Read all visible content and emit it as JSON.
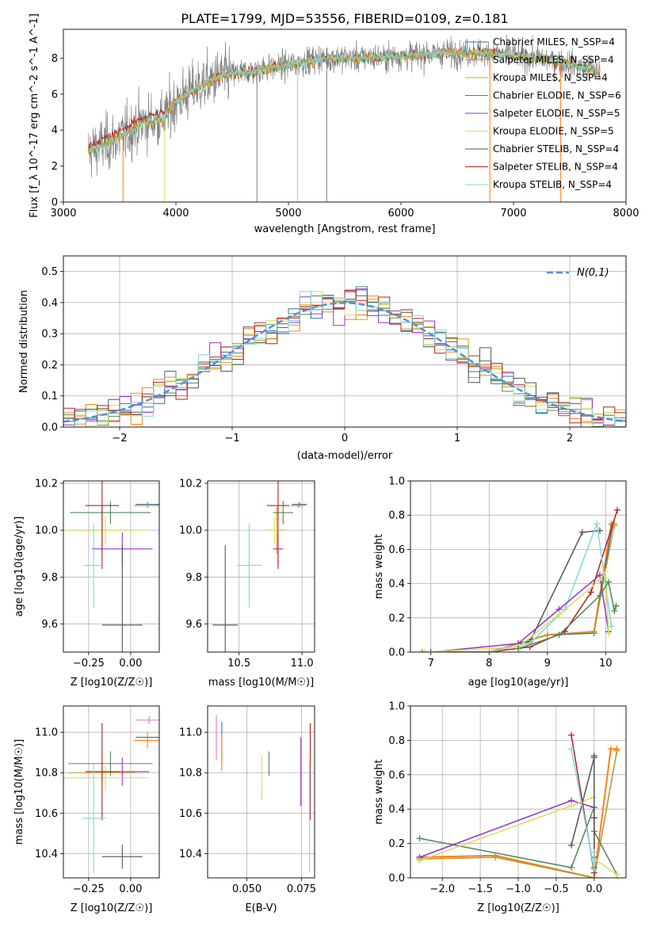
{
  "title": "PLATE=1799, MJD=53556, FIBERID=0109, z=0.181",
  "colors": {
    "chabrier_miles": "#1f77b4",
    "salpeter_miles": "#ff7f0e",
    "kroupa_miles": "#d4a017",
    "chabrier_elodie": "#4b8a5a",
    "salpeter_elodie": "#9b30c8",
    "kroupa_elodie": "#d4e157",
    "chabrier_stelib": "#555555",
    "salpeter_stelib": "#b22222",
    "kroupa_stelib": "#7fd8e0",
    "normal": "#5b8ed6",
    "grid": "#b0b0b0"
  },
  "chart_data": [
    {
      "id": "spectrum",
      "type": "line",
      "xlabel": "wavelength [Angstrom, rest frame]",
      "ylabel": "Flux [f_λ 10^-17 erg cm^-2 s^-1 A^-1]",
      "xlim": [
        3000,
        8000
      ],
      "ylim": [
        0,
        9.6
      ],
      "xticks": [
        3000,
        4000,
        5000,
        6000,
        7000,
        8000
      ],
      "yticks": [
        0,
        2,
        4,
        6,
        8
      ],
      "legend_position": "right",
      "legend": [
        {
          "key": "chabrier_miles",
          "label": "Chabrier MILES, N_SSP=4"
        },
        {
          "key": "salpeter_miles",
          "label": "Salpeter MILES, N_SSP=4"
        },
        {
          "key": "kroupa_miles",
          "label": "Kroupa MILES, N_SSP=4"
        },
        {
          "key": "chabrier_elodie",
          "label": "Chabrier ELODIE, N_SSP=6"
        },
        {
          "key": "salpeter_elodie",
          "label": "Salpeter ELODIE, N_SSP=5"
        },
        {
          "key": "kroupa_elodie",
          "label": "Kroupa ELODIE, N_SSP=5"
        },
        {
          "key": "chabrier_stelib",
          "label": "Chabrier STELIB, N_SSP=4"
        },
        {
          "key": "salpeter_stelib",
          "label": "Salpeter STELIB, N_SSP=4"
        },
        {
          "key": "kroupa_stelib",
          "label": "Kroupa STELIB, N_SSP=4"
        }
      ],
      "continuum": [
        [
          3220,
          2.8
        ],
        [
          3500,
          3.6
        ],
        [
          3700,
          4.4
        ],
        [
          3900,
          4.7
        ],
        [
          4000,
          5.6
        ],
        [
          4200,
          6.4
        ],
        [
          4400,
          7.0
        ],
        [
          4700,
          7.3
        ],
        [
          5000,
          7.6
        ],
        [
          5300,
          8.0
        ],
        [
          5600,
          8.0
        ],
        [
          6000,
          8.1
        ],
        [
          6400,
          8.3
        ],
        [
          6800,
          8.3
        ],
        [
          7200,
          8.0
        ],
        [
          7500,
          7.7
        ],
        [
          7770,
          7.2
        ]
      ]
    },
    {
      "id": "residuals",
      "type": "histogram",
      "xlabel": "(data-model)/error",
      "ylabel": "Normed distribution",
      "xlim": [
        -2.5,
        2.5
      ],
      "ylim": [
        0,
        0.55
      ],
      "xticks": [
        -2,
        -1,
        0,
        1,
        2
      ],
      "yticks": [
        0.0,
        0.1,
        0.2,
        0.3,
        0.4,
        0.5
      ],
      "legend_position": "top-right",
      "normal_label": "N(0,1)"
    },
    {
      "id": "age_vs_Z",
      "type": "errorbar",
      "xlabel": "Z [log10(Z/Z☉)]",
      "ylabel": "age  [log10(age/yr)]",
      "xlim": [
        -0.4,
        0.17
      ],
      "ylim": [
        9.48,
        10.21
      ],
      "xticks": [
        -0.25,
        0.0
      ],
      "yticks": [
        9.6,
        9.8,
        10.0,
        10.2
      ],
      "points": [
        {
          "key": "chabrier_miles",
          "x": 0.1,
          "y": 10.11,
          "xerr": 0.07,
          "yerr": 0.01
        },
        {
          "key": "salpeter_miles",
          "x": 0.1,
          "y": 10.105,
          "xerr": 0.08,
          "yerr": 0.01
        },
        {
          "key": "kroupa_miles",
          "x": -0.17,
          "y": 10.0,
          "xerr": 0.2,
          "yerr": 0.1
        },
        {
          "key": "chabrier_elodie",
          "x": -0.12,
          "y": 10.075,
          "xerr": 0.24,
          "yerr": 0.05
        },
        {
          "key": "salpeter_elodie",
          "x": -0.05,
          "y": 9.92,
          "xerr": 0.18,
          "yerr": 0.07
        },
        {
          "key": "kroupa_elodie",
          "x": -0.15,
          "y": 10.0,
          "xerr": 0.25,
          "yerr": 0.06
        },
        {
          "key": "chabrier_stelib",
          "x": -0.05,
          "y": 9.595,
          "xerr": 0.12,
          "yerr": 0.34
        },
        {
          "key": "salpeter_stelib",
          "x": -0.17,
          "y": 10.105,
          "xerr": 0.1,
          "yerr": 0.27
        },
        {
          "key": "kroupa_stelib",
          "x": -0.22,
          "y": 9.85,
          "xerr": 0.06,
          "yerr": 0.18
        }
      ]
    },
    {
      "id": "age_vs_mass",
      "type": "errorbar",
      "xlabel": "mass [log10(M/M☉)]",
      "ylabel": "",
      "xlim": [
        10.25,
        11.1
      ],
      "ylim": [
        9.48,
        10.21
      ],
      "xticks": [
        10.5,
        11.0
      ],
      "yticks": [
        9.6,
        9.8,
        10.0,
        10.2
      ],
      "points": [
        {
          "key": "chabrier_miles",
          "x": 10.98,
          "y": 10.11,
          "xerr": 0.06,
          "yerr": 0.01
        },
        {
          "key": "salpeter_miles",
          "x": 10.97,
          "y": 10.105,
          "xerr": 0.06,
          "yerr": 0.01
        },
        {
          "key": "kroupa_miles",
          "x": 10.8,
          "y": 10.0,
          "xerr": 0.06,
          "yerr": 0.1
        },
        {
          "key": "chabrier_elodie",
          "x": 10.85,
          "y": 10.075,
          "xerr": 0.08,
          "yerr": 0.05
        },
        {
          "key": "salpeter_elodie",
          "x": 10.81,
          "y": 9.92,
          "xerr": 0.04,
          "yerr": 0.07
        },
        {
          "key": "kroupa_elodie",
          "x": 10.78,
          "y": 10.0,
          "xerr": 0.05,
          "yerr": 0.06
        },
        {
          "key": "chabrier_stelib",
          "x": 10.39,
          "y": 9.595,
          "xerr": 0.1,
          "yerr": 0.34
        },
        {
          "key": "salpeter_stelib",
          "x": 10.81,
          "y": 10.105,
          "xerr": 0.09,
          "yerr": 0.27
        },
        {
          "key": "kroupa_stelib",
          "x": 10.58,
          "y": 9.85,
          "xerr": 0.1,
          "yerr": 0.18
        }
      ]
    },
    {
      "id": "mass_weight_vs_age",
      "type": "line",
      "xlabel": "age  [log10(age/yr)]",
      "ylabel": "mass weight",
      "xlim": [
        6.65,
        10.35
      ],
      "ylim": [
        0,
        1
      ],
      "xticks": [
        7,
        8,
        9,
        10
      ],
      "yticks": [
        0.0,
        0.2,
        0.4,
        0.6,
        0.8,
        1.0
      ],
      "series": [
        {
          "key": "salpeter_miles",
          "x": [
            6.85,
            8.0,
            9.0,
            9.8,
            10.1,
            10.15
          ],
          "y": [
            0.0,
            0.0,
            0.1,
            0.12,
            0.75,
            0.75
          ],
          "w": 2
        },
        {
          "key": "chabrier_miles",
          "x": [
            6.85,
            8.0,
            9.0,
            9.8,
            10.12
          ],
          "y": [
            0.0,
            0.0,
            0.1,
            0.11,
            0.74
          ],
          "w": 1.5
        },
        {
          "key": "kroupa_miles",
          "x": [
            6.85,
            8.0,
            9.0,
            9.8,
            10.15
          ],
          "y": [
            0.0,
            0.0,
            0.1,
            0.12,
            0.74
          ],
          "w": 1.2
        },
        {
          "key": "salpeter_stelib",
          "x": [
            8.0,
            8.7,
            9.3,
            9.75,
            10.2
          ],
          "y": [
            0.0,
            0.03,
            0.12,
            0.35,
            0.83
          ],
          "w": 1.5
        },
        {
          "key": "chabrier_stelib",
          "x": [
            8.5,
            8.7,
            9.6,
            9.9
          ],
          "y": [
            0.05,
            0.06,
            0.7,
            0.71
          ],
          "w": 1.5
        },
        {
          "key": "kroupa_stelib",
          "x": [
            8.0,
            8.7,
            9.3,
            9.85,
            10.1
          ],
          "y": [
            0.0,
            0.05,
            0.25,
            0.75,
            0.15
          ],
          "w": 1.5
        },
        {
          "key": "salpeter_elodie",
          "x": [
            7.0,
            8.5,
            9.2,
            9.9,
            10.05
          ],
          "y": [
            0.0,
            0.05,
            0.25,
            0.45,
            0.12
          ],
          "w": 1.5
        },
        {
          "key": "kroupa_elodie",
          "x": [
            6.9,
            8.5,
            9.2,
            9.9,
            10.0,
            10.05
          ],
          "y": [
            0.0,
            0.03,
            0.22,
            0.42,
            0.47,
            0.11
          ],
          "w": 1.5
        },
        {
          "key": "chabrier_elodie",
          "x": [
            8.5,
            9.2,
            9.9,
            10.05,
            10.15,
            10.18
          ],
          "y": [
            0.02,
            0.1,
            0.33,
            0.41,
            0.24,
            0.27
          ],
          "w": 1.5
        }
      ]
    },
    {
      "id": "mass_vs_Z",
      "type": "errorbar",
      "xlabel": "Z [log10(Z/Z☉)]",
      "ylabel": "mass [log10(M/M☉)]",
      "xlim": [
        -0.4,
        0.17
      ],
      "ylim": [
        10.28,
        11.13
      ],
      "xticks": [
        -0.25,
        0.0
      ],
      "yticks": [
        10.4,
        10.6,
        10.8,
        11.0
      ],
      "points": [
        {
          "key": "chabrier_miles",
          "x": 0.1,
          "y": 10.975,
          "xerr": 0.07,
          "yerr": 0.005
        },
        {
          "key": "salpeter_miles",
          "x": 0.1,
          "y": 10.96,
          "xerr": 0.08,
          "yerr": 0.04
        },
        {
          "key": "kroupa_miles",
          "x": -0.17,
          "y": 10.8,
          "xerr": 0.2,
          "yerr": 0.05
        },
        {
          "key": "chabrier_elodie",
          "x": -0.12,
          "y": 10.845,
          "xerr": 0.25,
          "yerr": 0.06
        },
        {
          "key": "salpeter_elodie",
          "x": -0.05,
          "y": 10.805,
          "xerr": 0.16,
          "yerr": 0.07
        },
        {
          "key": "kroupa_elodie",
          "x": -0.15,
          "y": 10.775,
          "xerr": 0.25,
          "yerr": 0.06
        },
        {
          "key": "chabrier_stelib",
          "x": -0.05,
          "y": 10.385,
          "xerr": 0.12,
          "yerr": 0.06
        },
        {
          "key": "salpeter_stelib",
          "x": -0.17,
          "y": 10.805,
          "xerr": 0.1,
          "yerr": 0.24
        },
        {
          "key": "kroupa_stelib",
          "x": -0.22,
          "y": 10.575,
          "xerr": 0.07,
          "yerr": 0.27
        },
        {
          "key": "kroupa_miles_pink",
          "x": 0.11,
          "y": 11.06,
          "xerr": 0.08,
          "yerr": 0.02
        }
      ]
    },
    {
      "id": "mass_vs_ebv",
      "type": "errorbar",
      "xlabel": "E(B-V)",
      "ylabel": "",
      "xlim": [
        0.032,
        0.081
      ],
      "ylim": [
        10.28,
        11.13
      ],
      "xticks": [
        0.05,
        0.075
      ],
      "yticks": [
        10.4,
        10.6,
        10.8,
        11.0
      ],
      "points": [
        {
          "key": "kroupa_miles_pink",
          "x": 0.036,
          "y": 10.975,
          "xerr": 0,
          "yerr": 0.11
        },
        {
          "key": "chabrier_miles",
          "x": 0.0385,
          "y": 10.95,
          "xerr": 0,
          "yerr": 0.1
        },
        {
          "key": "salpeter_miles",
          "x": 0.0385,
          "y": 10.9,
          "xerr": 0,
          "yerr": 0.09
        },
        {
          "key": "kroupa_elodie",
          "x": 0.0568,
          "y": 10.775,
          "xerr": 0,
          "yerr": 0.11
        },
        {
          "key": "chabrier_elodie",
          "x": 0.0601,
          "y": 10.845,
          "xerr": 0,
          "yerr": 0.06
        },
        {
          "key": "salpeter_elodie",
          "x": 0.0747,
          "y": 10.805,
          "xerr": 0,
          "yerr": 0.17
        },
        {
          "key": "salpeter_stelib",
          "x": 0.079,
          "y": 10.805,
          "xerr": 0,
          "yerr": 0.24
        },
        {
          "key": "kroupa_stelib",
          "x": 0.0787,
          "y": 10.575,
          "xerr": 0,
          "yerr": 0.27
        }
      ]
    },
    {
      "id": "mass_weight_vs_Z",
      "type": "line",
      "xlabel": "Z [log10(Z/Z☉)]",
      "ylabel": "mass weight",
      "xlim": [
        -2.42,
        0.42
      ],
      "ylim": [
        0,
        1
      ],
      "xticks": [
        -2.0,
        -1.5,
        -1.0,
        -0.5,
        0.0
      ],
      "yticks": [
        0.0,
        0.2,
        0.4,
        0.6,
        0.8,
        1.0
      ],
      "series": [
        {
          "key": "salpeter_miles",
          "x": [
            -2.3,
            -1.3,
            0.0,
            0.22,
            0.3
          ],
          "y": [
            0.12,
            0.13,
            0.0,
            0.75,
            0.75
          ],
          "w": 2
        },
        {
          "key": "chabrier_miles",
          "x": [
            -2.3,
            -1.3,
            0.0,
            0.3
          ],
          "y": [
            0.11,
            0.12,
            0.0,
            0.74
          ],
          "w": 1.5
        },
        {
          "key": "kroupa_miles",
          "x": [
            -2.3,
            -1.3,
            0.0,
            0.3
          ],
          "y": [
            0.11,
            0.12,
            0.0,
            0.74
          ],
          "w": 1.2
        },
        {
          "key": "chabrier_elodie",
          "x": [
            -2.3,
            -0.3,
            0.0,
            0.0,
            0.3
          ],
          "y": [
            0.23,
            0.06,
            0.41,
            0.27,
            0.02
          ],
          "w": 1.5
        },
        {
          "key": "salpeter_elodie",
          "x": [
            -2.3,
            -0.3,
            0.0,
            0.0
          ],
          "y": [
            0.12,
            0.45,
            0.41,
            0.12
          ],
          "w": 1.5
        },
        {
          "key": "kroupa_elodie",
          "x": [
            -2.3,
            -0.3,
            0.0,
            0.0,
            0.3
          ],
          "y": [
            0.1,
            0.42,
            0.47,
            0.11,
            0.02
          ],
          "w": 1.5
        },
        {
          "key": "salpeter_stelib",
          "x": [
            -0.3,
            0.0,
            0.0
          ],
          "y": [
            0.83,
            0.03,
            0.35
          ],
          "w": 1.5
        },
        {
          "key": "chabrier_stelib",
          "x": [
            -0.3,
            0.0,
            0.0,
            0.0
          ],
          "y": [
            0.19,
            0.7,
            0.06,
            0.71
          ],
          "w": 1.5
        },
        {
          "key": "kroupa_stelib",
          "x": [
            -0.3,
            0.0,
            0.0
          ],
          "y": [
            0.75,
            0.05,
            0.15
          ],
          "w": 1.5
        }
      ]
    }
  ]
}
